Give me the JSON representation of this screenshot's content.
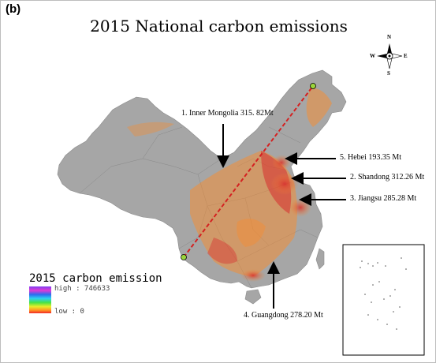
{
  "panel_label": "(b)",
  "title": "2015  National carbon emissions",
  "compass": {
    "n": "N",
    "s": "S",
    "e": "E",
    "w": "W"
  },
  "legend": {
    "title": "2015 carbon emission",
    "high_label": "high : 746633",
    "low_label": "low : 0",
    "gradient_colors": [
      "#7e3ff2",
      "#e23bd5",
      "#2c6cf0",
      "#2fd3f0",
      "#46e246",
      "#e9ef2a",
      "#ff9b21",
      "#f22727"
    ]
  },
  "colors": {
    "land": "#a6a6a6",
    "emission_low": "#ff8a24",
    "emission_high": "#e0211e",
    "divider_line": "#d42020"
  },
  "callouts": [
    {
      "label": "1. Inner Mongolia 315. 82Mt"
    },
    {
      "label": "5. Hebei 193.35 Mt"
    },
    {
      "label": "2. Shandong 312.26 Mt"
    },
    {
      "label": "3. Jiangsu 285.28 Mt"
    },
    {
      "label": "4. Guangdong 278.20 Mt"
    }
  ]
}
